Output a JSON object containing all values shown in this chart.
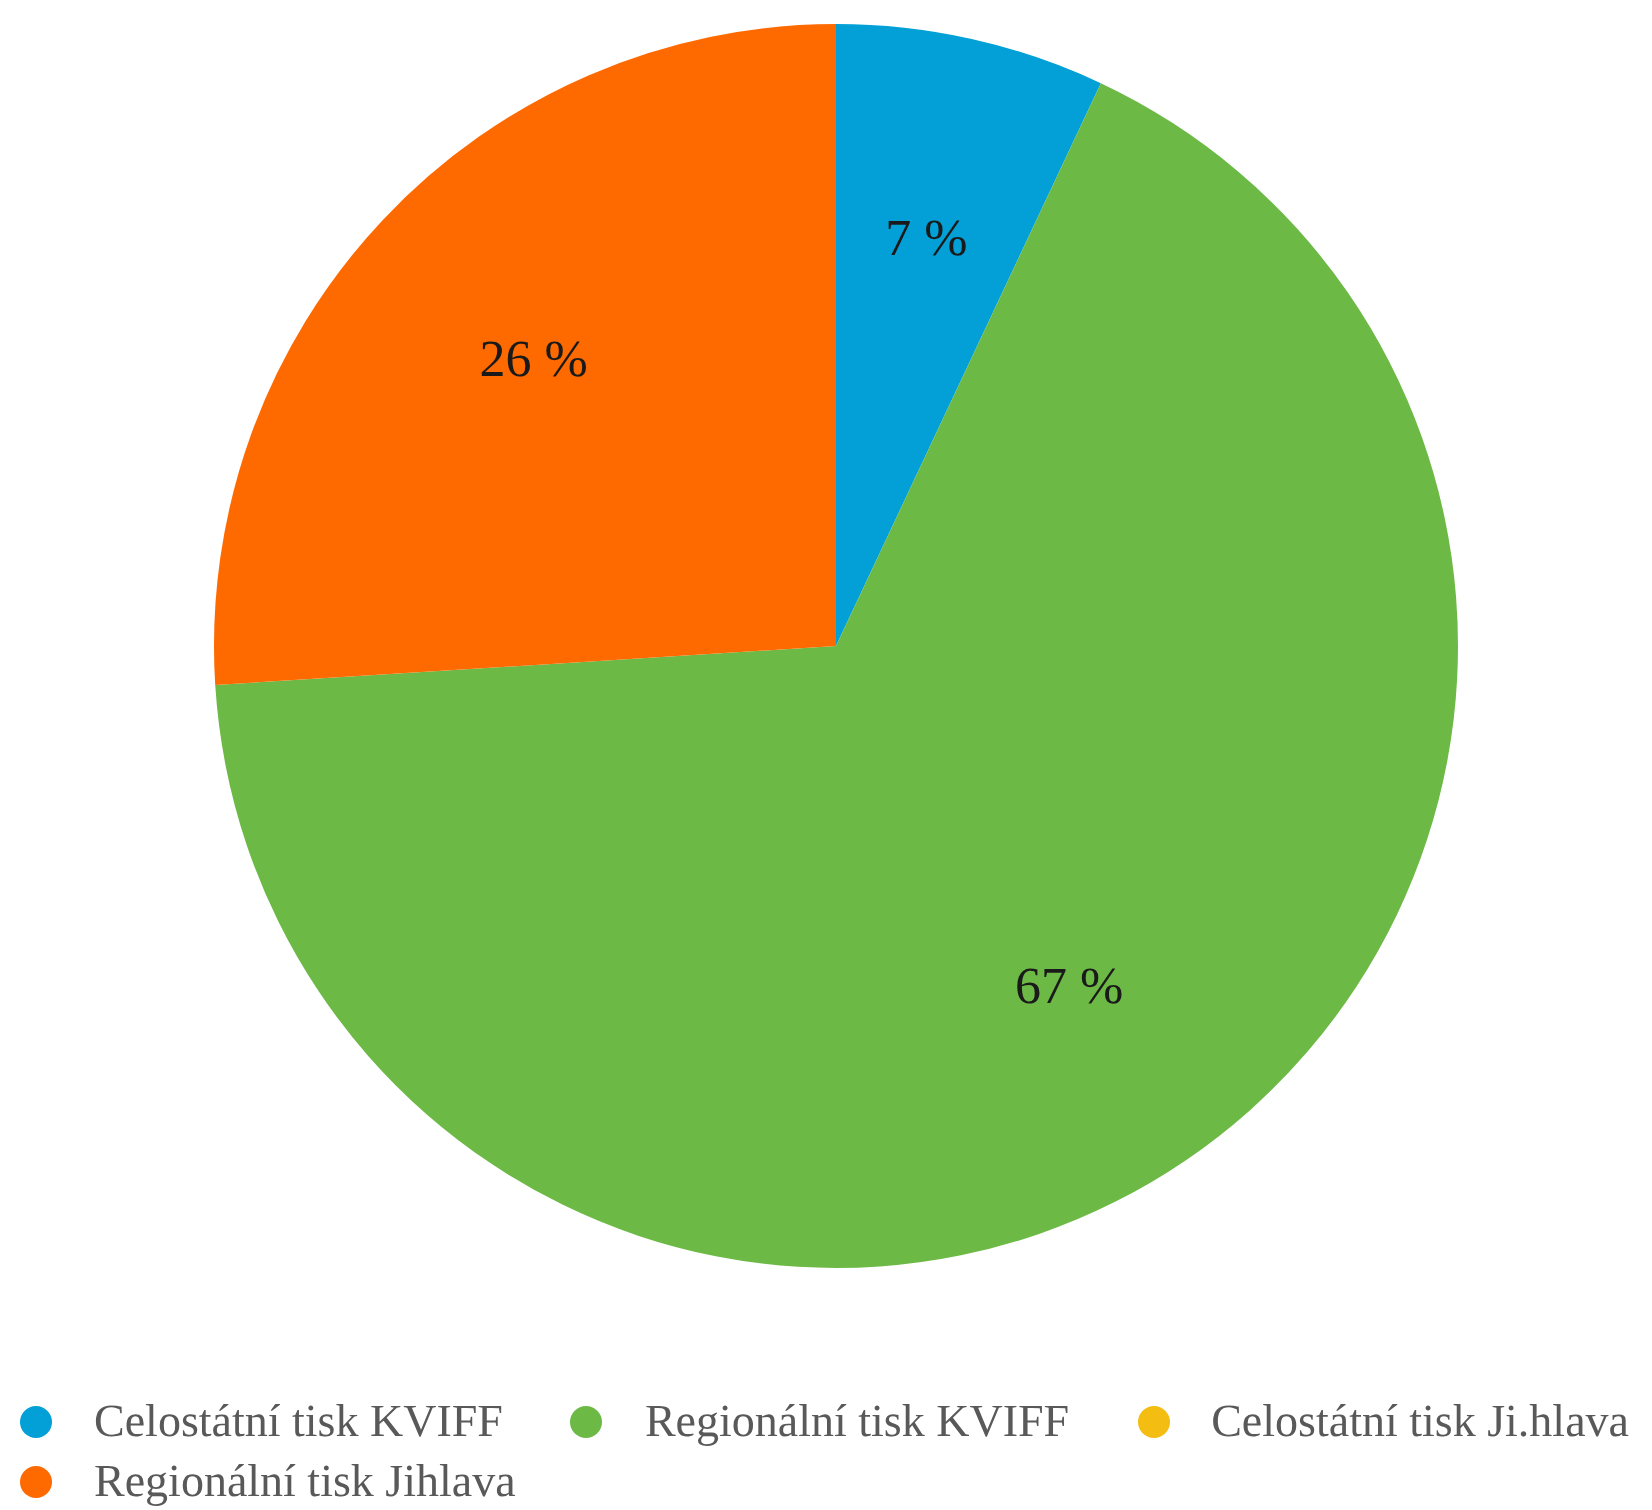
{
  "chart_data": {
    "type": "pie",
    "categories": [
      "Celostátní tisk KVIFF",
      "Regionální tisk KVIFF",
      "Celostátní tisk Ji.hlava",
      "Regionální tisk Jihlava"
    ],
    "values": [
      7,
      67,
      0,
      26
    ],
    "colors": [
      "#02a0d6",
      "#6cb946",
      "#f4bd12",
      "#fe6a00"
    ],
    "value_labels": [
      "7 %",
      "67 %",
      null,
      "26 %"
    ],
    "legend": "bottom"
  }
}
